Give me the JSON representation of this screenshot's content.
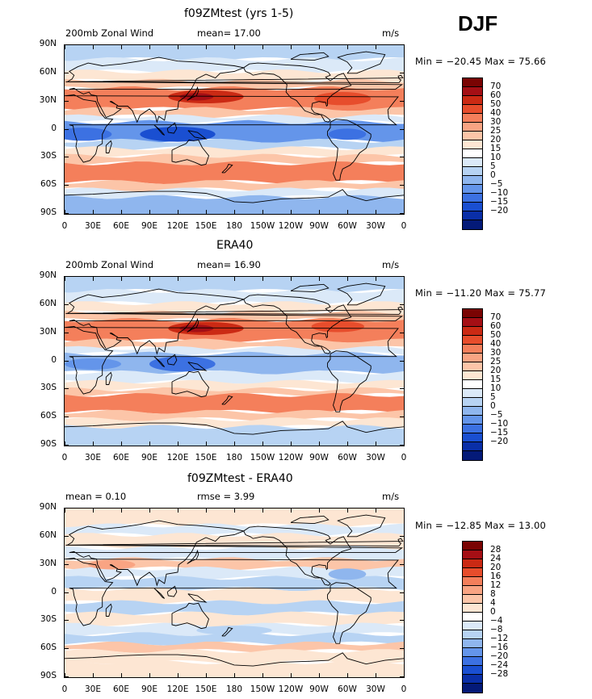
{
  "season": "DJF",
  "panels": [
    {
      "title": "f09ZMtest (yrs 1-5)",
      "left_label": "200mb Zonal Wind",
      "center_label": "mean=   17.00",
      "units": "m/s",
      "minmax": "Min = −20.45  Max =   75.66",
      "colorbar": {
        "levels": [
          "70",
          "60",
          "50",
          "40",
          "30",
          "25",
          "20",
          "15",
          "10",
          "5",
          "0",
          "−5",
          "−10",
          "−15",
          "−20"
        ],
        "colors": [
          "#7a0403",
          "#a50f15",
          "#cb2a14",
          "#e74d2c",
          "#f47f5b",
          "#f9a483",
          "#fcc5a8",
          "#fde6d3",
          "#ffffff",
          "#dbe9f8",
          "#b7d3f3",
          "#8fb6ee",
          "#6495ea",
          "#3c71e2",
          "#1a4fd1",
          "#0a2fa8",
          "#041a78"
        ]
      },
      "mean_value": 17.0
    },
    {
      "title": "ERA40",
      "left_label": "200mb Zonal Wind",
      "center_label": "mean=   16.90",
      "units": "m/s",
      "minmax": "Min = −11.20  Max =   75.77",
      "colorbar": {
        "levels": [
          "70",
          "60",
          "50",
          "40",
          "30",
          "25",
          "20",
          "15",
          "10",
          "5",
          "0",
          "−5",
          "−10",
          "−15",
          "−20"
        ],
        "colors": [
          "#7a0403",
          "#a50f15",
          "#cb2a14",
          "#e74d2c",
          "#f47f5b",
          "#f9a483",
          "#fcc5a8",
          "#fde6d3",
          "#ffffff",
          "#dbe9f8",
          "#b7d3f3",
          "#8fb6ee",
          "#6495ea",
          "#3c71e2",
          "#1a4fd1",
          "#0a2fa8",
          "#041a78"
        ]
      },
      "mean_value": 16.9
    },
    {
      "title": "f09ZMtest - ERA40",
      "left_label": "mean =    0.10",
      "center_label": "rmse =    3.99",
      "units": "m/s",
      "minmax": "Min = −12.85  Max =   13.00",
      "colorbar": {
        "levels": [
          "28",
          "24",
          "20",
          "16",
          "12",
          "8",
          "4",
          "0",
          "−4",
          "−8",
          "−12",
          "−16",
          "−20",
          "−24",
          "−28"
        ],
        "colors": [
          "#7a0403",
          "#a50f15",
          "#cb2a14",
          "#e74d2c",
          "#f47f5b",
          "#f9a483",
          "#fcc5a8",
          "#fde6d3",
          "#ffffff",
          "#dbe9f8",
          "#b7d3f3",
          "#8fb6ee",
          "#6495ea",
          "#3c71e2",
          "#1a4fd1",
          "#0a2fa8",
          "#041a78"
        ]
      },
      "mean_value": 0.1
    }
  ],
  "lat_labels": [
    "90N",
    "60N",
    "30N",
    "0",
    "30S",
    "60S",
    "90S"
  ],
  "lon_labels": [
    "0",
    "30E",
    "60E",
    "90E",
    "120E",
    "150E",
    "180",
    "150W",
    "120W",
    "90W",
    "60W",
    "30W",
    "0"
  ],
  "bands": {
    "panel1": [
      {
        "lat0": 90,
        "lat1": 75,
        "color": "#b7d3f3"
      },
      {
        "lat0": 75,
        "lat1": 62,
        "color": "#dbe9f8"
      },
      {
        "lat0": 62,
        "lat1": 52,
        "color": "#fde6d3"
      },
      {
        "lat0": 52,
        "lat1": 44,
        "color": "#fcc5a8"
      },
      {
        "lat0": 44,
        "lat1": 22,
        "color": "#f47f5b"
      },
      {
        "lat0": 22,
        "lat1": 14,
        "color": "#fcc5a8"
      },
      {
        "lat0": 14,
        "lat1": 8,
        "color": "#dbe9f8"
      },
      {
        "lat0": 8,
        "lat1": -12,
        "color": "#6495ea"
      },
      {
        "lat0": -12,
        "lat1": -20,
        "color": "#b7d3f3"
      },
      {
        "lat0": -20,
        "lat1": -28,
        "color": "#fde6d3"
      },
      {
        "lat0": -28,
        "lat1": -36,
        "color": "#fcc5a8"
      },
      {
        "lat0": -36,
        "lat1": -56,
        "color": "#f47f5b"
      },
      {
        "lat0": -56,
        "lat1": -64,
        "color": "#fcc5a8"
      },
      {
        "lat0": -64,
        "lat1": -72,
        "color": "#dbe9f8"
      },
      {
        "lat0": -72,
        "lat1": -90,
        "color": "#8fb6ee"
      }
    ],
    "panel2": [
      {
        "lat0": 90,
        "lat1": 75,
        "color": "#b7d3f3"
      },
      {
        "lat0": 75,
        "lat1": 62,
        "color": "#dbe9f8"
      },
      {
        "lat0": 62,
        "lat1": 52,
        "color": "#fde6d3"
      },
      {
        "lat0": 52,
        "lat1": 44,
        "color": "#fcc5a8"
      },
      {
        "lat0": 44,
        "lat1": 22,
        "color": "#f47f5b"
      },
      {
        "lat0": 22,
        "lat1": 14,
        "color": "#fcc5a8"
      },
      {
        "lat0": 14,
        "lat1": 8,
        "color": "#dbe9f8"
      },
      {
        "lat0": 8,
        "lat1": -12,
        "color": "#8fb6ee"
      },
      {
        "lat0": -12,
        "lat1": -22,
        "color": "#dbe9f8"
      },
      {
        "lat0": -22,
        "lat1": -30,
        "color": "#fde6d3"
      },
      {
        "lat0": -30,
        "lat1": -36,
        "color": "#fcc5a8"
      },
      {
        "lat0": -36,
        "lat1": -54,
        "color": "#f47f5b"
      },
      {
        "lat0": -54,
        "lat1": -62,
        "color": "#fcc5a8"
      },
      {
        "lat0": -62,
        "lat1": -70,
        "color": "#fde6d3"
      },
      {
        "lat0": -70,
        "lat1": -90,
        "color": "#b7d3f3"
      }
    ],
    "panel3": [
      {
        "lat0": 90,
        "lat1": 72,
        "color": "#fde6d3"
      },
      {
        "lat0": 72,
        "lat1": 62,
        "color": "#dbe9f8"
      },
      {
        "lat0": 62,
        "lat1": 48,
        "color": "#fde6d3"
      },
      {
        "lat0": 48,
        "lat1": 36,
        "color": "#dbe9f8"
      },
      {
        "lat0": 36,
        "lat1": 26,
        "color": "#fcc5a8"
      },
      {
        "lat0": 26,
        "lat1": 16,
        "color": "#dbe9f8"
      },
      {
        "lat0": 16,
        "lat1": 4,
        "color": "#b7d3f3"
      },
      {
        "lat0": 4,
        "lat1": -10,
        "color": "#fde6d3"
      },
      {
        "lat0": -10,
        "lat1": -22,
        "color": "#b7d3f3"
      },
      {
        "lat0": -22,
        "lat1": -34,
        "color": "#fde6d3"
      },
      {
        "lat0": -34,
        "lat1": -44,
        "color": "#dbe9f8"
      },
      {
        "lat0": -44,
        "lat1": -54,
        "color": "#b7d3f3"
      },
      {
        "lat0": -54,
        "lat1": -62,
        "color": "#fcc5a8"
      },
      {
        "lat0": -62,
        "lat1": -74,
        "color": "#fde6d3"
      },
      {
        "lat0": -74,
        "lat1": -90,
        "color": "#fde6d3"
      }
    ]
  },
  "jet_cores": {
    "panel1": [
      {
        "lon": 150,
        "lat": 35,
        "rlon": 40,
        "rlat": 7,
        "color": "#cb2a14"
      },
      {
        "lon": 140,
        "lat": 35,
        "rlon": 18,
        "rlat": 4,
        "color": "#a50f15"
      },
      {
        "lon": 295,
        "lat": 33,
        "rlon": 30,
        "rlat": 7,
        "color": "#e74d2c"
      },
      {
        "lon": 120,
        "lat": -5,
        "rlon": 40,
        "rlat": 8,
        "color": "#1a4fd1"
      },
      {
        "lon": 20,
        "lat": -5,
        "rlon": 30,
        "rlat": 7,
        "color": "#3c71e2"
      },
      {
        "lon": 300,
        "lat": -5,
        "rlon": 20,
        "rlat": 6,
        "color": "#3c71e2"
      }
    ],
    "panel2": [
      {
        "lon": 150,
        "lat": 35,
        "rlon": 40,
        "rlat": 7,
        "color": "#cb2a14"
      },
      {
        "lon": 140,
        "lat": 35,
        "rlon": 18,
        "rlat": 4,
        "color": "#a50f15"
      },
      {
        "lon": 290,
        "lat": 37,
        "rlon": 28,
        "rlat": 6,
        "color": "#e74d2c"
      },
      {
        "lon": 125,
        "lat": -3,
        "rlon": 35,
        "rlat": 8,
        "color": "#3c71e2"
      },
      {
        "lon": 30,
        "lat": -3,
        "rlon": 30,
        "rlat": 6,
        "color": "#6495ea"
      }
    ],
    "panel3": [
      {
        "lon": 50,
        "lat": 30,
        "rlon": 25,
        "rlat": 5,
        "color": "#f9a483"
      },
      {
        "lon": 120,
        "lat": -3,
        "rlon": 30,
        "rlat": 6,
        "color": "#fde6d3"
      },
      {
        "lon": 300,
        "lat": 20,
        "rlon": 20,
        "rlat": 6,
        "color": "#8fb6ee"
      },
      {
        "lon": 180,
        "lat": -40,
        "rlon": 40,
        "rlat": 5,
        "color": "#b7d3f3"
      }
    ]
  }
}
